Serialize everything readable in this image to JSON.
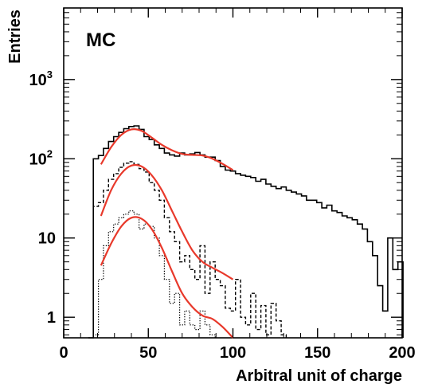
{
  "chart_data": {
    "type": "line",
    "annotation": "MC",
    "xlabel": "Arbitral unit of charge",
    "ylabel": "Entries",
    "xlim": [
      0,
      200
    ],
    "ylim": [
      0.55,
      8000
    ],
    "yscale": "log",
    "grid": false,
    "x_ticks": [
      {
        "value": 0,
        "label": "0"
      },
      {
        "value": 50,
        "label": "50"
      },
      {
        "value": 100,
        "label": "100"
      },
      {
        "value": 150,
        "label": "150"
      },
      {
        "value": 200,
        "label": "200"
      }
    ],
    "y_ticks": [
      {
        "value": 1,
        "label": "1"
      },
      {
        "value": 10,
        "label": "10"
      },
      {
        "value": 100,
        "label": "10",
        "exp": "2"
      },
      {
        "value": 1000,
        "label": "10",
        "exp": "3"
      }
    ],
    "bin_width": 3,
    "colors": {
      "histogram": "#000000",
      "fit": "#e8392b"
    },
    "series": [
      {
        "style": "solid",
        "x": [
          16,
          19,
          22,
          25,
          28,
          31,
          34,
          37,
          40,
          43,
          46,
          49,
          52,
          55,
          58,
          61,
          64,
          67,
          70,
          73,
          76,
          79,
          82,
          85,
          88,
          91,
          94,
          97,
          100,
          103,
          106,
          109,
          112,
          115,
          118,
          121,
          124,
          127,
          130,
          133,
          136,
          139,
          142,
          145,
          148,
          151,
          154,
          157,
          160,
          163,
          166,
          169,
          172,
          175,
          178,
          181,
          184,
          187,
          190,
          193,
          196,
          199
        ],
        "y": [
          0.5,
          100,
          110,
          135,
          165,
          190,
          215,
          240,
          255,
          260,
          235,
          190,
          175,
          150,
          135,
          118,
          112,
          108,
          118,
          112,
          115,
          120,
          112,
          105,
          105,
          95,
          80,
          72,
          70,
          65,
          62,
          60,
          58,
          52,
          55,
          48,
          45,
          42,
          44,
          40,
          38,
          36,
          34,
          30,
          30,
          28,
          24,
          26,
          22,
          21,
          19,
          18,
          17,
          15,
          13,
          9,
          6,
          2.5,
          1.2,
          10,
          4,
          5
        ]
      },
      {
        "style": "dashed",
        "x": [
          19,
          22,
          25,
          28,
          31,
          34,
          37,
          40,
          43,
          46,
          49,
          52,
          55,
          58,
          61,
          64,
          67,
          70,
          73,
          76,
          79,
          82,
          85,
          88,
          91,
          94,
          97,
          100,
          103,
          106,
          109,
          112,
          115,
          118,
          121,
          124,
          127,
          130
        ],
        "y": [
          25,
          28,
          40,
          55,
          65,
          78,
          88,
          92,
          85,
          75,
          68,
          50,
          40,
          30,
          18,
          12,
          9,
          5,
          6,
          4,
          3,
          8,
          2,
          5,
          3,
          2.5,
          1.3,
          1.2,
          3,
          1,
          0.8,
          2,
          0.7,
          1.4,
          0.6,
          1.5,
          0.9,
          0.6
        ]
      },
      {
        "style": "dotted",
        "x": [
          19,
          22,
          25,
          28,
          31,
          34,
          37,
          40,
          43,
          46,
          49,
          52,
          55,
          58,
          61,
          64,
          67,
          70,
          73,
          76,
          79,
          82,
          85,
          88
        ],
        "y": [
          0.6,
          3,
          8,
          12,
          15,
          18,
          20,
          22,
          20,
          13,
          15,
          14,
          10,
          6,
          3,
          1.5,
          2,
          0.8,
          1.2,
          0.8,
          0.7,
          1.2,
          0.8,
          0.6
        ]
      }
    ],
    "fits": [
      {
        "x": [
          22,
          28,
          34,
          40,
          46,
          52,
          58,
          64,
          70,
          76,
          82,
          88,
          94,
          100
        ],
        "y": [
          85,
          140,
          200,
          235,
          225,
          185,
          150,
          128,
          115,
          112,
          110,
          100,
          86,
          72
        ]
      },
      {
        "x": [
          22,
          28,
          34,
          40,
          46,
          52,
          58,
          64,
          70,
          76,
          82,
          88,
          94,
          100
        ],
        "y": [
          19,
          40,
          65,
          82,
          80,
          62,
          40,
          22,
          12,
          7,
          5,
          4.2,
          3.6,
          3
        ]
      },
      {
        "x": [
          22,
          28,
          34,
          40,
          46,
          52,
          58,
          64,
          70,
          76,
          82,
          88,
          94,
          100
        ],
        "y": [
          4.5,
          8.5,
          14,
          18,
          17.5,
          13,
          7.5,
          3.8,
          2,
          1.35,
          1.05,
          0.95,
          0.75,
          0.55
        ]
      }
    ]
  }
}
